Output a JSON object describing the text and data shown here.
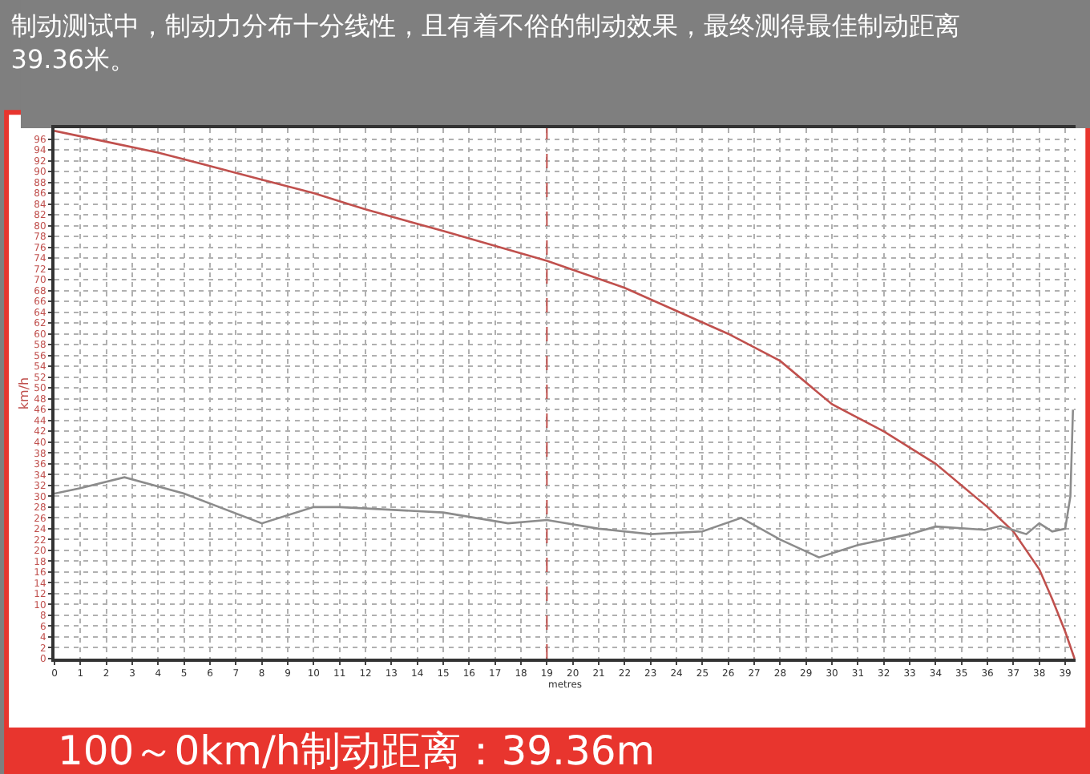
{
  "chart_data": {
    "type": "line",
    "title": "制动测试中，制动力分布十分线性，且有着不俗的制动效果，最终测得最佳制动距离39.36米。",
    "xlabel": "metres",
    "ylabel": "km/h",
    "annotations": [
      "100～0km/h制动距离：39.36m"
    ],
    "series": [
      {
        "color": "#c0504d",
        "x": [
          0,
          2,
          4,
          6,
          8,
          10,
          12,
          15,
          19,
          22,
          26,
          28,
          30,
          32,
          34,
          36,
          37,
          38,
          38.5,
          39,
          39.36
        ],
        "values": [
          97.5,
          95.5,
          93.5,
          91,
          88.5,
          86,
          83,
          79,
          73.5,
          68.5,
          60,
          55,
          47,
          42,
          36,
          28,
          23.5,
          16.5,
          11,
          5,
          0
        ]
      },
      {
        "color": "#8c8c8c",
        "x": [
          0,
          1,
          2.7,
          5,
          8,
          10,
          11,
          15,
          17.5,
          19,
          21,
          23,
          25,
          26.5,
          28,
          29.5,
          31,
          33,
          34,
          35.9,
          36.5,
          37.5,
          38,
          38.5,
          39,
          39.2,
          39.3
        ],
        "values": [
          30.5,
          31.5,
          33.5,
          30.5,
          25,
          28,
          28,
          27,
          25,
          25.6,
          24,
          23,
          23.5,
          26,
          22,
          18.7,
          21,
          23,
          24.4,
          23.8,
          24.5,
          23,
          25,
          23.5,
          24,
          30,
          46
        ]
      }
    ],
    "ref_lines": [
      {
        "axis": "x",
        "value": 19,
        "color": "#c0504d",
        "line_style": "dashed"
      }
    ],
    "xlim": [
      0,
      39.4
    ],
    "ylim": [
      0,
      98
    ],
    "xticks": [
      0,
      1,
      2,
      3,
      4,
      5,
      6,
      7,
      8,
      9,
      10,
      11,
      12,
      13,
      14,
      15,
      16,
      17,
      18,
      19,
      20,
      21,
      22,
      23,
      24,
      25,
      26,
      27,
      28,
      29,
      30,
      31,
      32,
      33,
      34,
      35,
      36,
      37,
      38,
      39
    ],
    "yticks": [
      0,
      2,
      4,
      6,
      8,
      10,
      12,
      14,
      16,
      18,
      20,
      22,
      24,
      26,
      28,
      30,
      32,
      34,
      36,
      38,
      40,
      42,
      44,
      46,
      48,
      50,
      52,
      54,
      56,
      58,
      60,
      62,
      64,
      66,
      68,
      70,
      72,
      74,
      76,
      78,
      80,
      82,
      84,
      86,
      88,
      90,
      92,
      94,
      96
    ],
    "grid": true,
    "marker": "none",
    "line_style": "solid"
  }
}
